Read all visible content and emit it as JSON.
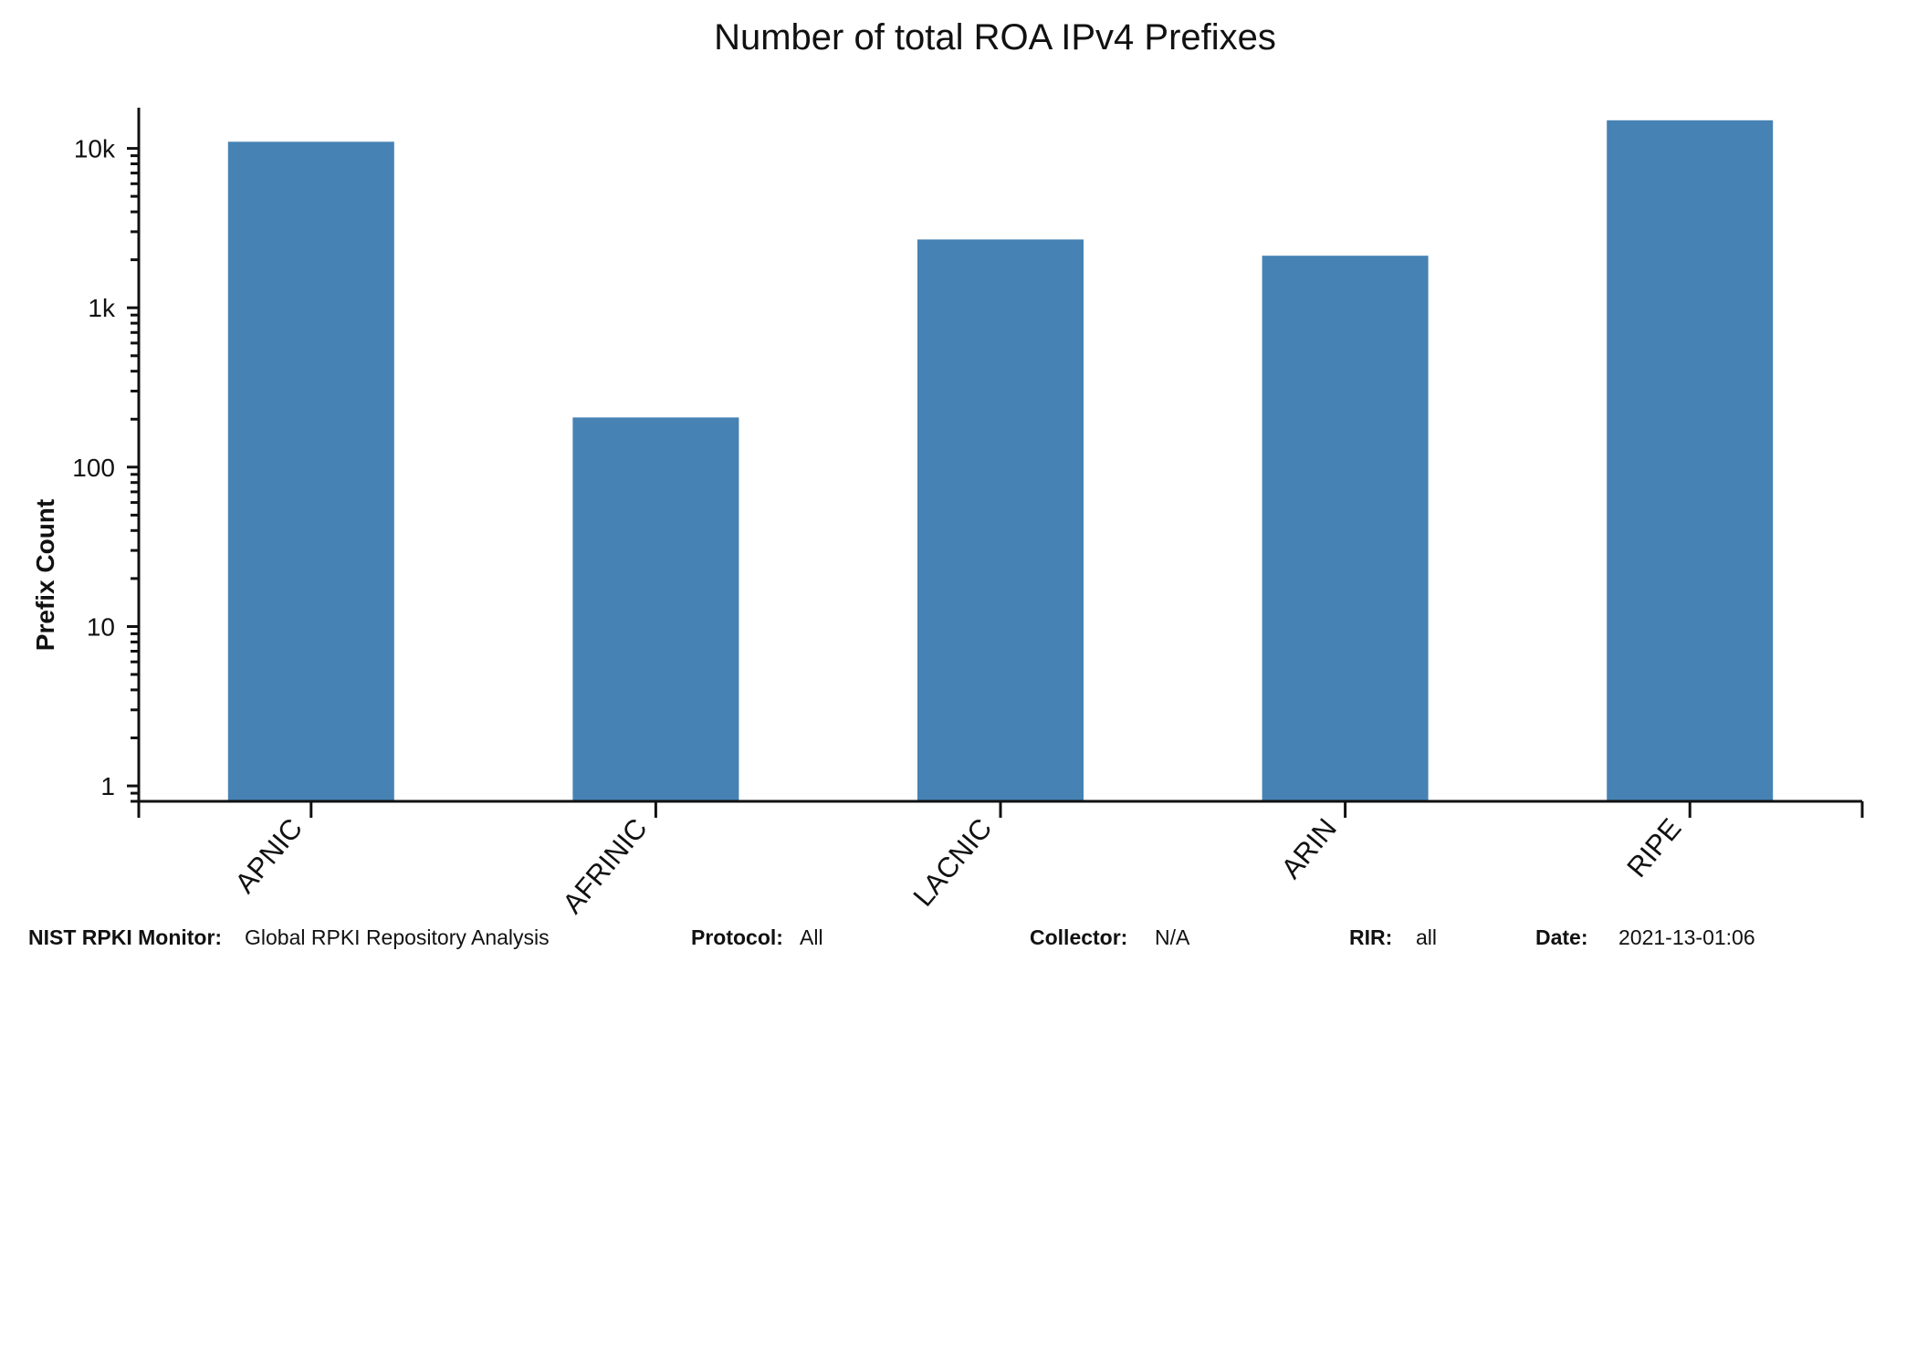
{
  "footer": {
    "monitor_label": "NIST RPKI Monitor:",
    "monitor_value": "Global RPKI Repository Analysis",
    "protocol_label": "Protocol:",
    "protocol_value": "All",
    "collector_label": "Collector:",
    "collector_value": "N/A",
    "rir_label": "RIR:",
    "rir_value": "all",
    "date_label": "Date:",
    "date_value": "2021-13-01:06"
  },
  "chart_data": {
    "type": "bar",
    "title": "Number of total ROA IPv4 Prefixes",
    "xlabel": "",
    "ylabel": "Prefix Count",
    "y_scale": "log",
    "ylim": [
      0.8,
      18000
    ],
    "grid": false,
    "categories": [
      "APNIC",
      "AFRINIC",
      "LACNIC",
      "ARIN",
      "RIPE"
    ],
    "values": [
      11000,
      205,
      2680,
      2120,
      15000
    ],
    "ytick_values": [
      1,
      10,
      100,
      1000,
      10000
    ],
    "ytick_labels": [
      "1",
      "10",
      "100",
      "1k",
      "10k"
    ],
    "bar_color": "#4682b4"
  }
}
